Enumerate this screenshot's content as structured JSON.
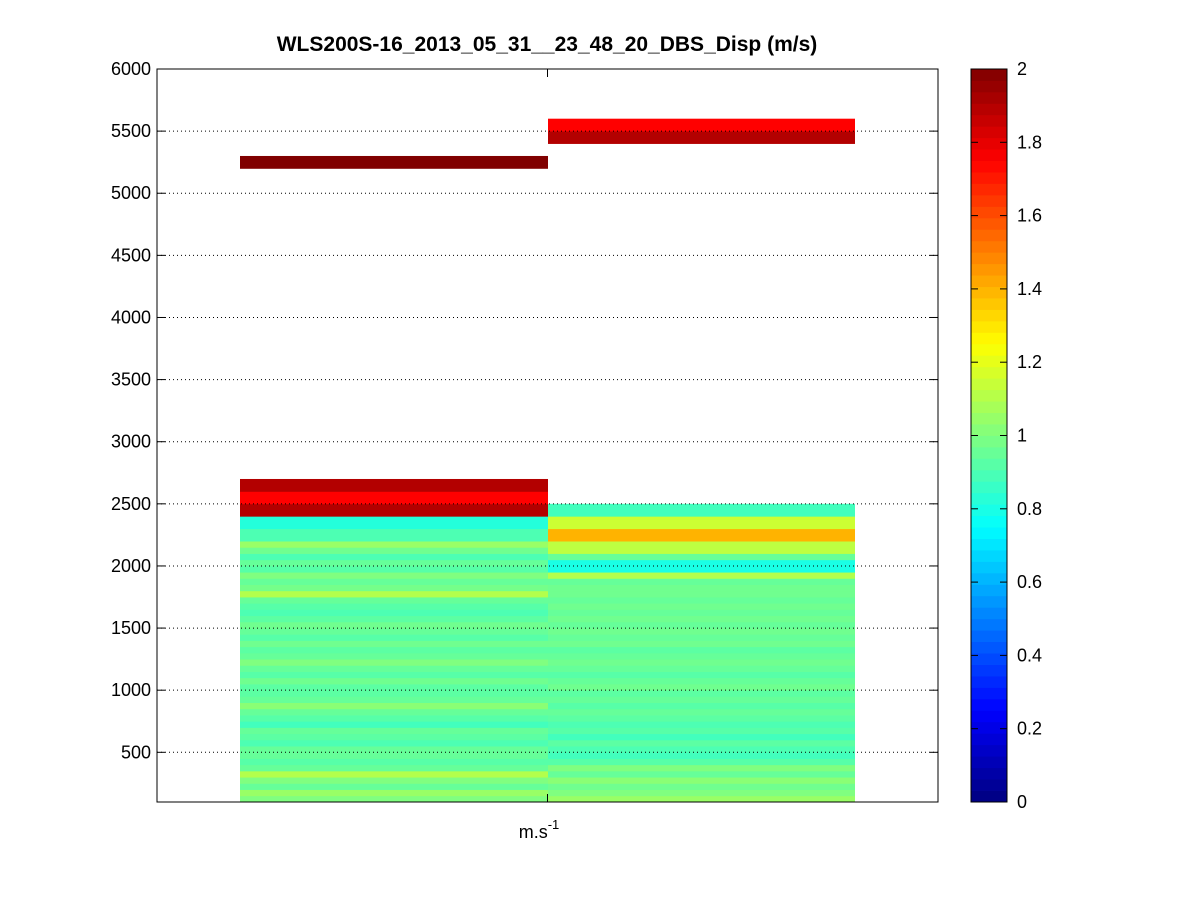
{
  "chart_data": {
    "type": "heatmap",
    "title": "WLS200S-16_2013_05_31__23_48_20_DBS_Disp (m/s)",
    "xlabel": "m.s",
    "xlabel_superscript": "-1",
    "ylabel": "",
    "ylim": [
      100,
      6000
    ],
    "yticks": [
      500,
      1000,
      1500,
      2000,
      2500,
      3000,
      3500,
      4000,
      4500,
      5000,
      5500,
      6000
    ],
    "grid": "horizontal dotted",
    "colorbar": {
      "colormap": "jet",
      "clim": [
        0,
        2
      ],
      "ticks": [
        0,
        0.2,
        0.4,
        0.6,
        0.8,
        1,
        1.2,
        1.4,
        1.6,
        1.8,
        2
      ],
      "tick_labels": [
        "0",
        "0.2",
        "0.4",
        "0.6",
        "0.8",
        "1",
        "1.2",
        "1.4",
        "1.6",
        "1.8",
        "2"
      ]
    },
    "columns": [
      {
        "rows": [
          [
            100,
            150,
            1.0
          ],
          [
            150,
            200,
            1.05
          ],
          [
            200,
            250,
            0.95
          ],
          [
            250,
            300,
            1.0
          ],
          [
            300,
            350,
            1.1
          ],
          [
            350,
            400,
            0.95
          ],
          [
            400,
            450,
            0.92
          ],
          [
            450,
            550,
            0.95
          ],
          [
            550,
            600,
            0.9
          ],
          [
            600,
            650,
            0.93
          ],
          [
            650,
            700,
            0.95
          ],
          [
            700,
            750,
            0.88
          ],
          [
            750,
            800,
            0.92
          ],
          [
            800,
            850,
            0.95
          ],
          [
            850,
            900,
            1.02
          ],
          [
            900,
            950,
            0.95
          ],
          [
            950,
            1050,
            0.93
          ],
          [
            1050,
            1100,
            0.97
          ],
          [
            1100,
            1150,
            0.92
          ],
          [
            1150,
            1200,
            0.95
          ],
          [
            1200,
            1250,
            1.0
          ],
          [
            1250,
            1300,
            0.95
          ],
          [
            1300,
            1350,
            0.93
          ],
          [
            1350,
            1400,
            0.97
          ],
          [
            1400,
            1450,
            0.92
          ],
          [
            1450,
            1500,
            0.95
          ],
          [
            1500,
            1550,
            0.97
          ],
          [
            1550,
            1600,
            0.93
          ],
          [
            1600,
            1650,
            0.9
          ],
          [
            1650,
            1700,
            0.92
          ],
          [
            1700,
            1750,
            0.95
          ],
          [
            1750,
            1800,
            1.1
          ],
          [
            1800,
            1850,
            0.98
          ],
          [
            1850,
            1900,
            0.95
          ],
          [
            1900,
            1950,
            1.0
          ],
          [
            1950,
            2000,
            0.92
          ],
          [
            2000,
            2050,
            0.95
          ],
          [
            2050,
            2100,
            0.9
          ],
          [
            2100,
            2150,
            0.97
          ],
          [
            2150,
            2200,
            1.05
          ],
          [
            2200,
            2300,
            0.9
          ],
          [
            2300,
            2400,
            0.82
          ],
          [
            2400,
            2500,
            1.9
          ],
          [
            2500,
            2600,
            1.75
          ],
          [
            2600,
            2700,
            1.9
          ],
          [
            5200,
            5300,
            2.0
          ]
        ]
      },
      {
        "rows": [
          [
            100,
            150,
            1.05
          ],
          [
            150,
            200,
            1.0
          ],
          [
            200,
            250,
            0.97
          ],
          [
            250,
            300,
            1.02
          ],
          [
            300,
            350,
            0.95
          ],
          [
            350,
            400,
            1.0
          ],
          [
            400,
            450,
            0.92
          ],
          [
            450,
            500,
            0.88
          ],
          [
            500,
            550,
            0.9
          ],
          [
            550,
            600,
            0.93
          ],
          [
            600,
            650,
            0.88
          ],
          [
            650,
            700,
            0.92
          ],
          [
            700,
            750,
            0.9
          ],
          [
            750,
            800,
            0.93
          ],
          [
            800,
            850,
            0.95
          ],
          [
            850,
            900,
            0.92
          ],
          [
            900,
            950,
            0.95
          ],
          [
            950,
            1000,
            0.93
          ],
          [
            1000,
            1050,
            0.97
          ],
          [
            1050,
            1100,
            0.95
          ],
          [
            1100,
            1150,
            0.92
          ],
          [
            1150,
            1200,
            0.95
          ],
          [
            1200,
            1250,
            0.97
          ],
          [
            1250,
            1300,
            0.95
          ],
          [
            1300,
            1350,
            0.93
          ],
          [
            1350,
            1400,
            0.97
          ],
          [
            1400,
            1450,
            0.95
          ],
          [
            1450,
            1500,
            0.97
          ],
          [
            1500,
            1550,
            0.95
          ],
          [
            1550,
            1600,
            0.97
          ],
          [
            1600,
            1650,
            0.95
          ],
          [
            1650,
            1700,
            0.97
          ],
          [
            1700,
            1750,
            0.95
          ],
          [
            1750,
            1800,
            0.97
          ],
          [
            1800,
            1850,
            0.97
          ],
          [
            1850,
            1900,
            0.95
          ],
          [
            1900,
            1950,
            1.1
          ],
          [
            1950,
            2050,
            0.8
          ],
          [
            2050,
            2100,
            0.95
          ],
          [
            2100,
            2200,
            1.12
          ],
          [
            2200,
            2300,
            1.4
          ],
          [
            2300,
            2400,
            1.15
          ],
          [
            2400,
            2500,
            0.88
          ],
          [
            5400,
            5500,
            1.9
          ],
          [
            5500,
            5600,
            1.75
          ]
        ]
      }
    ]
  }
}
